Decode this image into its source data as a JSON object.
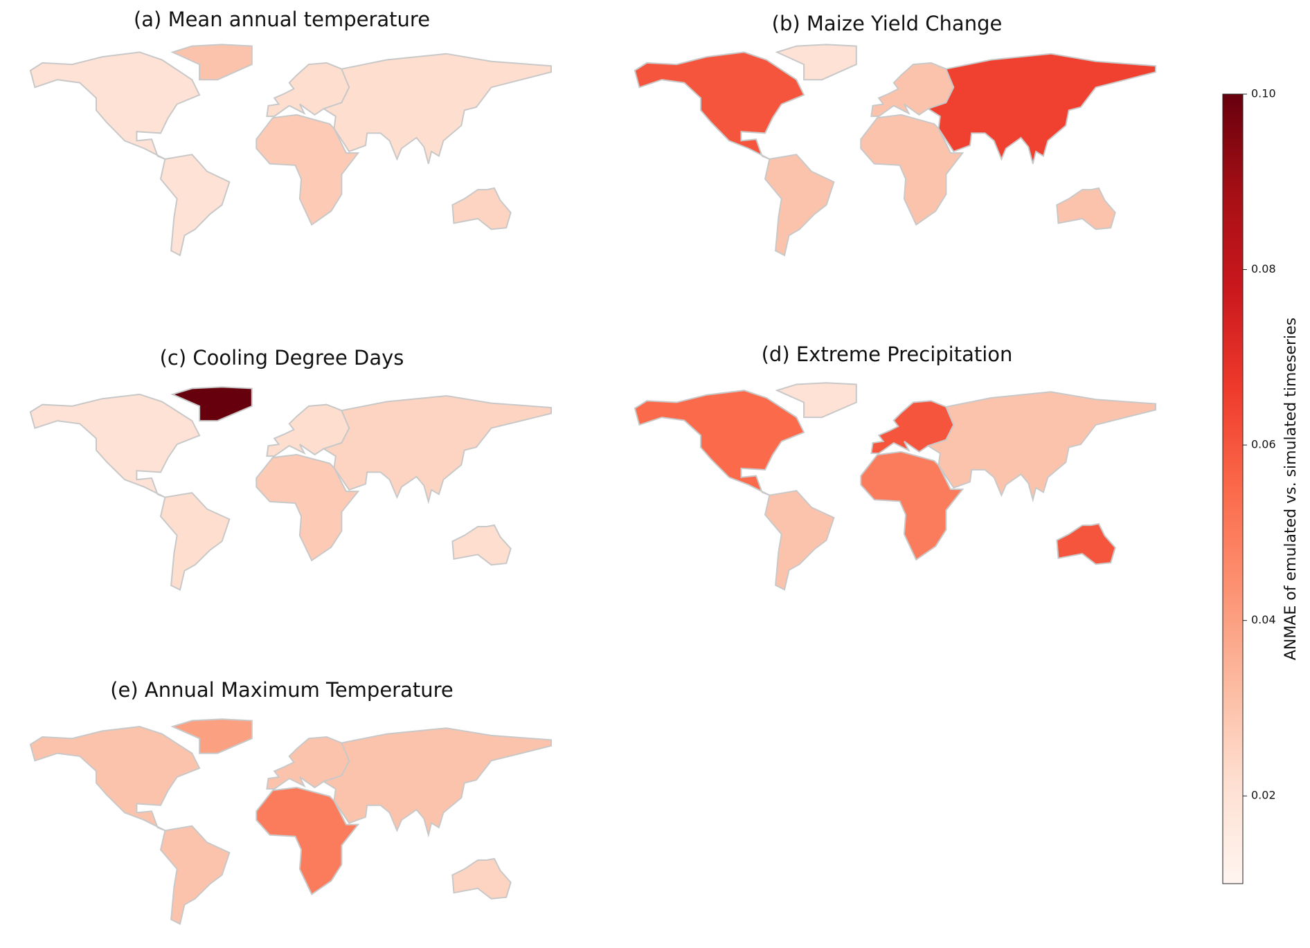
{
  "chart_data": {
    "type": "choropleth",
    "colormap": [
      "#fff5f0",
      "#fee0d2",
      "#fcbba1",
      "#fc9272",
      "#fb6a4a",
      "#ef3b2c",
      "#cb181d",
      "#a50f15",
      "#67000d"
    ],
    "clim": [
      0.01,
      0.1
    ],
    "cticks": [
      0.02,
      0.04,
      0.06,
      0.08,
      {
        "value": 0.1,
        "label": "0.10"
      }
    ],
    "colorbar_label": "ANMAE of emulated vs. simulated timeseries",
    "maps": [
      {
        "title": "(a) Mean annual temperature",
        "values": [
          0.02,
          0.02,
          0.022,
          0.028,
          0.022,
          0.025,
          0.03
        ]
      },
      {
        "title": "(b) Maize Yield Change",
        "values": [
          0.06,
          0.03,
          0.03,
          0.03,
          0.065,
          0.03,
          0.02
        ]
      },
      {
        "title": "(c) Cooling Degree Days",
        "values": [
          0.02,
          0.022,
          0.022,
          0.028,
          0.025,
          0.022,
          0.1
        ]
      },
      {
        "title": "(d) Extreme Precipitation",
        "values": [
          0.055,
          0.03,
          0.06,
          0.05,
          0.03,
          0.06,
          0.02
        ]
      },
      {
        "title": "(e) Annual Maximum Temperature",
        "values": [
          0.03,
          0.03,
          0.03,
          0.05,
          0.03,
          0.025,
          0.04
        ]
      }
    ]
  }
}
